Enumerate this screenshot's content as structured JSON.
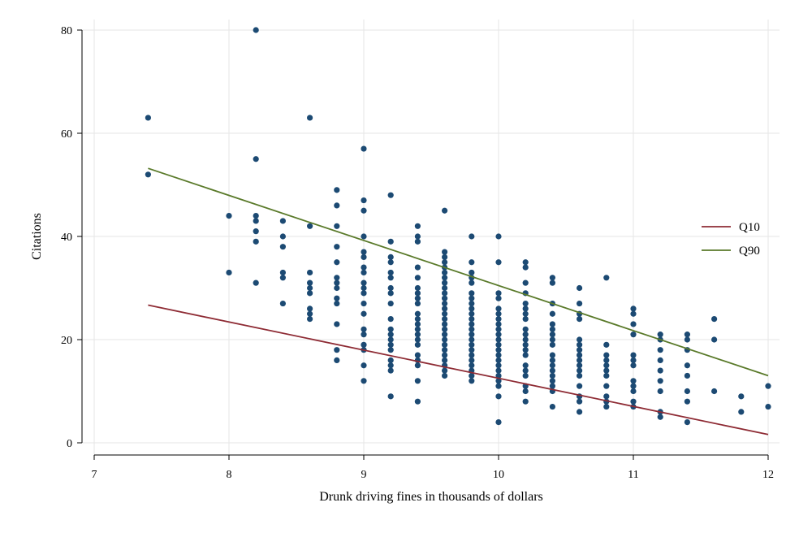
{
  "chart_data": {
    "type": "scatter",
    "title": "",
    "xlabel": "Drunk driving fines in thousands of dollars",
    "ylabel": "Citations",
    "xlim": [
      7,
      12
    ],
    "ylim": [
      0,
      80
    ],
    "x_ticks": [
      7,
      8,
      9,
      10,
      11,
      12
    ],
    "y_ticks": [
      0,
      20,
      40,
      60,
      80
    ],
    "grid": true,
    "legend_position": "right",
    "colors": {
      "points": "#1c4a73",
      "Q10": "#8e2b34",
      "Q90": "#5a7a2a",
      "grid": "#e6e6e6",
      "axis": "#000000"
    },
    "points": [
      [
        7.4,
        63
      ],
      [
        7.4,
        52
      ],
      [
        8.0,
        44
      ],
      [
        8.0,
        33
      ],
      [
        8.2,
        80
      ],
      [
        8.2,
        55
      ],
      [
        8.2,
        44
      ],
      [
        8.2,
        43
      ],
      [
        8.2,
        41
      ],
      [
        8.2,
        39
      ],
      [
        8.2,
        31
      ],
      [
        8.4,
        43
      ],
      [
        8.4,
        40
      ],
      [
        8.4,
        38
      ],
      [
        8.4,
        33
      ],
      [
        8.4,
        32
      ],
      [
        8.4,
        27
      ],
      [
        8.6,
        63
      ],
      [
        8.6,
        42
      ],
      [
        8.6,
        33
      ],
      [
        8.6,
        31
      ],
      [
        8.6,
        30
      ],
      [
        8.6,
        29
      ],
      [
        8.6,
        26
      ],
      [
        8.6,
        25
      ],
      [
        8.6,
        24
      ],
      [
        8.8,
        49
      ],
      [
        8.8,
        46
      ],
      [
        8.8,
        42
      ],
      [
        8.8,
        38
      ],
      [
        8.8,
        35
      ],
      [
        8.8,
        32
      ],
      [
        8.8,
        31
      ],
      [
        8.8,
        30
      ],
      [
        8.8,
        28
      ],
      [
        8.8,
        27
      ],
      [
        8.8,
        23
      ],
      [
        8.8,
        18
      ],
      [
        8.8,
        16
      ],
      [
        9.0,
        57
      ],
      [
        9.0,
        47
      ],
      [
        9.0,
        45
      ],
      [
        9.0,
        40
      ],
      [
        9.0,
        37
      ],
      [
        9.0,
        36
      ],
      [
        9.0,
        34
      ],
      [
        9.0,
        33
      ],
      [
        9.0,
        31
      ],
      [
        9.0,
        30
      ],
      [
        9.0,
        29
      ],
      [
        9.0,
        27
      ],
      [
        9.0,
        25
      ],
      [
        9.0,
        22
      ],
      [
        9.0,
        21
      ],
      [
        9.0,
        19
      ],
      [
        9.0,
        18
      ],
      [
        9.0,
        15
      ],
      [
        9.0,
        12
      ],
      [
        9.2,
        48
      ],
      [
        9.2,
        39
      ],
      [
        9.2,
        36
      ],
      [
        9.2,
        35
      ],
      [
        9.2,
        33
      ],
      [
        9.2,
        32
      ],
      [
        9.2,
        30
      ],
      [
        9.2,
        29
      ],
      [
        9.2,
        27
      ],
      [
        9.2,
        24
      ],
      [
        9.2,
        22
      ],
      [
        9.2,
        21
      ],
      [
        9.2,
        20
      ],
      [
        9.2,
        19
      ],
      [
        9.2,
        18
      ],
      [
        9.2,
        16
      ],
      [
        9.2,
        15
      ],
      [
        9.2,
        14
      ],
      [
        9.2,
        9
      ],
      [
        9.4,
        42
      ],
      [
        9.4,
        40
      ],
      [
        9.4,
        39
      ],
      [
        9.4,
        34
      ],
      [
        9.4,
        32
      ],
      [
        9.4,
        30
      ],
      [
        9.4,
        29
      ],
      [
        9.4,
        28
      ],
      [
        9.4,
        27
      ],
      [
        9.4,
        25
      ],
      [
        9.4,
        24
      ],
      [
        9.4,
        23
      ],
      [
        9.4,
        22
      ],
      [
        9.4,
        21
      ],
      [
        9.4,
        20
      ],
      [
        9.4,
        19
      ],
      [
        9.4,
        17
      ],
      [
        9.4,
        16
      ],
      [
        9.4,
        15
      ],
      [
        9.4,
        12
      ],
      [
        9.4,
        8
      ],
      [
        9.6,
        45
      ],
      [
        9.6,
        37
      ],
      [
        9.6,
        36
      ],
      [
        9.6,
        35
      ],
      [
        9.6,
        34
      ],
      [
        9.6,
        33
      ],
      [
        9.6,
        32
      ],
      [
        9.6,
        31
      ],
      [
        9.6,
        30
      ],
      [
        9.6,
        29
      ],
      [
        9.6,
        28
      ],
      [
        9.6,
        27
      ],
      [
        9.6,
        26
      ],
      [
        9.6,
        25
      ],
      [
        9.6,
        24
      ],
      [
        9.6,
        23
      ],
      [
        9.6,
        22
      ],
      [
        9.6,
        21
      ],
      [
        9.6,
        20
      ],
      [
        9.6,
        19
      ],
      [
        9.6,
        18
      ],
      [
        9.6,
        17
      ],
      [
        9.6,
        16
      ],
      [
        9.6,
        15
      ],
      [
        9.6,
        14
      ],
      [
        9.6,
        13
      ],
      [
        9.8,
        40
      ],
      [
        9.8,
        35
      ],
      [
        9.8,
        33
      ],
      [
        9.8,
        32
      ],
      [
        9.8,
        31
      ],
      [
        9.8,
        29
      ],
      [
        9.8,
        28
      ],
      [
        9.8,
        27
      ],
      [
        9.8,
        26
      ],
      [
        9.8,
        25
      ],
      [
        9.8,
        24
      ],
      [
        9.8,
        23
      ],
      [
        9.8,
        22
      ],
      [
        9.8,
        21
      ],
      [
        9.8,
        20
      ],
      [
        9.8,
        19
      ],
      [
        9.8,
        18
      ],
      [
        9.8,
        17
      ],
      [
        9.8,
        16
      ],
      [
        9.8,
        15
      ],
      [
        9.8,
        14
      ],
      [
        9.8,
        13
      ],
      [
        9.8,
        12
      ],
      [
        10.0,
        40
      ],
      [
        10.0,
        35
      ],
      [
        10.0,
        29
      ],
      [
        10.0,
        28
      ],
      [
        10.0,
        26
      ],
      [
        10.0,
        25
      ],
      [
        10.0,
        24
      ],
      [
        10.0,
        23
      ],
      [
        10.0,
        22
      ],
      [
        10.0,
        21
      ],
      [
        10.0,
        20
      ],
      [
        10.0,
        19
      ],
      [
        10.0,
        18
      ],
      [
        10.0,
        17
      ],
      [
        10.0,
        16
      ],
      [
        10.0,
        15
      ],
      [
        10.0,
        14
      ],
      [
        10.0,
        13
      ],
      [
        10.0,
        12
      ],
      [
        10.0,
        11
      ],
      [
        10.0,
        9
      ],
      [
        10.0,
        4
      ],
      [
        10.2,
        35
      ],
      [
        10.2,
        34
      ],
      [
        10.2,
        31
      ],
      [
        10.2,
        29
      ],
      [
        10.2,
        27
      ],
      [
        10.2,
        26
      ],
      [
        10.2,
        25
      ],
      [
        10.2,
        24
      ],
      [
        10.2,
        22
      ],
      [
        10.2,
        21
      ],
      [
        10.2,
        20
      ],
      [
        10.2,
        19
      ],
      [
        10.2,
        18
      ],
      [
        10.2,
        17
      ],
      [
        10.2,
        15
      ],
      [
        10.2,
        14
      ],
      [
        10.2,
        13
      ],
      [
        10.2,
        11
      ],
      [
        10.2,
        10
      ],
      [
        10.2,
        8
      ],
      [
        10.4,
        32
      ],
      [
        10.4,
        31
      ],
      [
        10.4,
        27
      ],
      [
        10.4,
        25
      ],
      [
        10.4,
        23
      ],
      [
        10.4,
        22
      ],
      [
        10.4,
        21
      ],
      [
        10.4,
        20
      ],
      [
        10.4,
        19
      ],
      [
        10.4,
        17
      ],
      [
        10.4,
        16
      ],
      [
        10.4,
        15
      ],
      [
        10.4,
        14
      ],
      [
        10.4,
        13
      ],
      [
        10.4,
        12
      ],
      [
        10.4,
        11
      ],
      [
        10.4,
        10
      ],
      [
        10.4,
        7
      ],
      [
        10.6,
        30
      ],
      [
        10.6,
        27
      ],
      [
        10.6,
        25
      ],
      [
        10.6,
        24
      ],
      [
        10.6,
        20
      ],
      [
        10.6,
        19
      ],
      [
        10.6,
        18
      ],
      [
        10.6,
        17
      ],
      [
        10.6,
        16
      ],
      [
        10.6,
        15
      ],
      [
        10.6,
        14
      ],
      [
        10.6,
        13
      ],
      [
        10.6,
        11
      ],
      [
        10.6,
        9
      ],
      [
        10.6,
        8
      ],
      [
        10.6,
        6
      ],
      [
        10.8,
        32
      ],
      [
        10.8,
        19
      ],
      [
        10.8,
        17
      ],
      [
        10.8,
        16
      ],
      [
        10.8,
        15
      ],
      [
        10.8,
        14
      ],
      [
        10.8,
        13
      ],
      [
        10.8,
        11
      ],
      [
        10.8,
        9
      ],
      [
        10.8,
        8
      ],
      [
        10.8,
        7
      ],
      [
        11.0,
        26
      ],
      [
        11.0,
        25
      ],
      [
        11.0,
        23
      ],
      [
        11.0,
        21
      ],
      [
        11.0,
        17
      ],
      [
        11.0,
        16
      ],
      [
        11.0,
        15
      ],
      [
        11.0,
        12
      ],
      [
        11.0,
        11
      ],
      [
        11.0,
        10
      ],
      [
        11.0,
        8
      ],
      [
        11.0,
        7
      ],
      [
        11.2,
        21
      ],
      [
        11.2,
        20
      ],
      [
        11.2,
        18
      ],
      [
        11.2,
        16
      ],
      [
        11.2,
        14
      ],
      [
        11.2,
        12
      ],
      [
        11.2,
        10
      ],
      [
        11.2,
        6
      ],
      [
        11.2,
        5
      ],
      [
        11.4,
        21
      ],
      [
        11.4,
        20
      ],
      [
        11.4,
        18
      ],
      [
        11.4,
        15
      ],
      [
        11.4,
        13
      ],
      [
        11.4,
        10
      ],
      [
        11.4,
        8
      ],
      [
        11.4,
        4
      ],
      [
        11.6,
        24
      ],
      [
        11.6,
        20
      ],
      [
        11.6,
        10
      ],
      [
        11.8,
        9
      ],
      [
        11.8,
        6
      ],
      [
        12.0,
        11
      ],
      [
        12.0,
        7
      ]
    ],
    "series": [
      {
        "name": "Q10",
        "x": [
          7.4,
          12.0
        ],
        "y": [
          26.7,
          1.6
        ]
      },
      {
        "name": "Q90",
        "x": [
          7.4,
          12.0
        ],
        "y": [
          53.2,
          13.0
        ]
      }
    ]
  }
}
